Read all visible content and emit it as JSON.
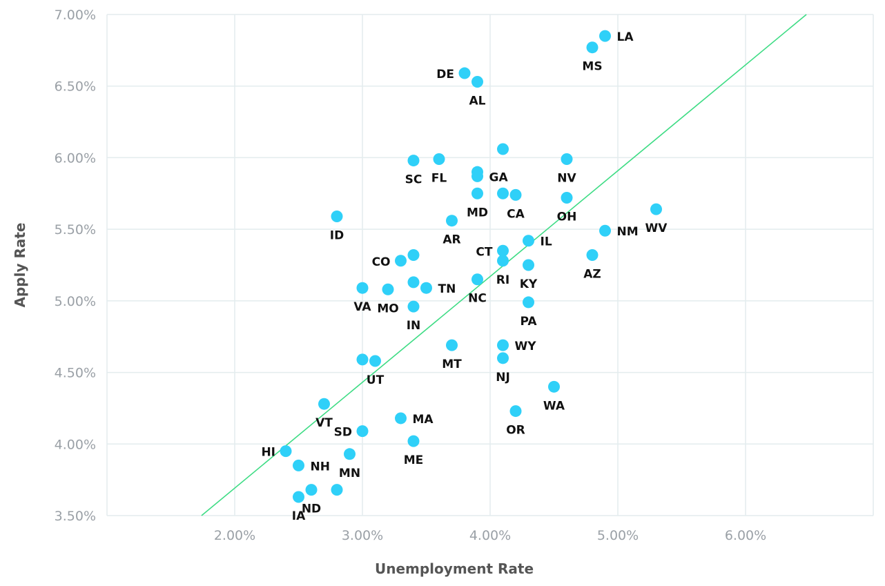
{
  "chart_data": {
    "type": "scatter",
    "xlabel": "Unemployment Rate",
    "ylabel": "Apply Rate",
    "xlim": [
      1.0,
      7.0
    ],
    "ylim": [
      3.5,
      7.0
    ],
    "xticks": [
      2,
      3,
      4,
      5,
      6
    ],
    "xtick_labels": [
      "2.00%",
      "3.00%",
      "4.00%",
      "5.00%",
      "6.00%"
    ],
    "yticks": [
      3.5,
      4.0,
      4.5,
      5.0,
      5.5,
      6.0,
      6.5,
      7.0
    ],
    "ytick_labels": [
      "3.50%",
      "4.00%",
      "4.50%",
      "5.00%",
      "5.50%",
      "6.00%",
      "6.50%",
      "7.00%"
    ],
    "grid": true,
    "point_color": "#2fd0f8",
    "trendline": {
      "color": "#3ddc84",
      "slope": 0.739,
      "intercept": 2.214
    },
    "points": [
      {
        "label": "LA",
        "x": 4.9,
        "y": 6.85,
        "pos": "right"
      },
      {
        "label": "MS",
        "x": 4.8,
        "y": 6.77,
        "pos": "below"
      },
      {
        "label": "DE",
        "x": 3.8,
        "y": 6.59,
        "pos": "left"
      },
      {
        "label": "AL",
        "x": 3.9,
        "y": 6.53,
        "pos": "below"
      },
      {
        "label": "",
        "x": 4.1,
        "y": 6.06,
        "pos": "none"
      },
      {
        "label": "FL",
        "x": 3.6,
        "y": 5.99,
        "pos": "below"
      },
      {
        "label": "SC",
        "x": 3.4,
        "y": 5.98,
        "pos": "below"
      },
      {
        "label": "NV",
        "x": 4.6,
        "y": 5.99,
        "pos": "below"
      },
      {
        "label": "",
        "x": 3.9,
        "y": 5.9,
        "pos": "none"
      },
      {
        "label": "GA",
        "x": 3.9,
        "y": 5.87,
        "pos": "right"
      },
      {
        "label": "MD",
        "x": 3.9,
        "y": 5.75,
        "pos": "below"
      },
      {
        "label": "",
        "x": 4.1,
        "y": 5.75,
        "pos": "none"
      },
      {
        "label": "CA",
        "x": 4.2,
        "y": 5.74,
        "pos": "below"
      },
      {
        "label": "OH",
        "x": 4.6,
        "y": 5.72,
        "pos": "below"
      },
      {
        "label": "WV",
        "x": 5.3,
        "y": 5.64,
        "pos": "below"
      },
      {
        "label": "ID",
        "x": 2.8,
        "y": 5.59,
        "pos": "below"
      },
      {
        "label": "AR",
        "x": 3.7,
        "y": 5.56,
        "pos": "below"
      },
      {
        "label": "NM",
        "x": 4.9,
        "y": 5.49,
        "pos": "right"
      },
      {
        "label": "IL",
        "x": 4.3,
        "y": 5.42,
        "pos": "right"
      },
      {
        "label": "CT",
        "x": 4.1,
        "y": 5.35,
        "pos": "left"
      },
      {
        "label": "",
        "x": 3.4,
        "y": 5.32,
        "pos": "none"
      },
      {
        "label": "AZ",
        "x": 4.8,
        "y": 5.32,
        "pos": "below"
      },
      {
        "label": "CO",
        "x": 3.3,
        "y": 5.28,
        "pos": "left"
      },
      {
        "label": "RI",
        "x": 4.1,
        "y": 5.28,
        "pos": "below"
      },
      {
        "label": "KY",
        "x": 4.3,
        "y": 5.25,
        "pos": "below"
      },
      {
        "label": "NC",
        "x": 3.9,
        "y": 5.15,
        "pos": "below"
      },
      {
        "label": "",
        "x": 3.4,
        "y": 5.13,
        "pos": "none"
      },
      {
        "label": "VA",
        "x": 3.0,
        "y": 5.09,
        "pos": "below"
      },
      {
        "label": "TN",
        "x": 3.5,
        "y": 5.09,
        "pos": "right"
      },
      {
        "label": "MO",
        "x": 3.2,
        "y": 5.08,
        "pos": "below"
      },
      {
        "label": "PA",
        "x": 4.3,
        "y": 4.99,
        "pos": "below"
      },
      {
        "label": "IN",
        "x": 3.4,
        "y": 4.96,
        "pos": "below"
      },
      {
        "label": "MT",
        "x": 3.7,
        "y": 4.69,
        "pos": "below"
      },
      {
        "label": "WY",
        "x": 4.1,
        "y": 4.69,
        "pos": "right"
      },
      {
        "label": "NJ",
        "x": 4.1,
        "y": 4.6,
        "pos": "below"
      },
      {
        "label": "",
        "x": 3.0,
        "y": 4.59,
        "pos": "none"
      },
      {
        "label": "UT",
        "x": 3.1,
        "y": 4.58,
        "pos": "below"
      },
      {
        "label": "WA",
        "x": 4.5,
        "y": 4.4,
        "pos": "below"
      },
      {
        "label": "VT",
        "x": 2.7,
        "y": 4.28,
        "pos": "below"
      },
      {
        "label": "OR",
        "x": 4.2,
        "y": 4.23,
        "pos": "below"
      },
      {
        "label": "MA",
        "x": 3.3,
        "y": 4.18,
        "pos": "right"
      },
      {
        "label": "SD",
        "x": 3.0,
        "y": 4.09,
        "pos": "left"
      },
      {
        "label": "ME",
        "x": 3.4,
        "y": 4.02,
        "pos": "below"
      },
      {
        "label": "HI",
        "x": 2.4,
        "y": 3.95,
        "pos": "left"
      },
      {
        "label": "MN",
        "x": 2.9,
        "y": 3.93,
        "pos": "below"
      },
      {
        "label": "NH",
        "x": 2.5,
        "y": 3.85,
        "pos": "right"
      },
      {
        "label": "ND",
        "x": 2.6,
        "y": 3.68,
        "pos": "below"
      },
      {
        "label": "",
        "x": 2.8,
        "y": 3.68,
        "pos": "none"
      },
      {
        "label": "IA",
        "x": 2.5,
        "y": 3.63,
        "pos": "below"
      }
    ]
  }
}
